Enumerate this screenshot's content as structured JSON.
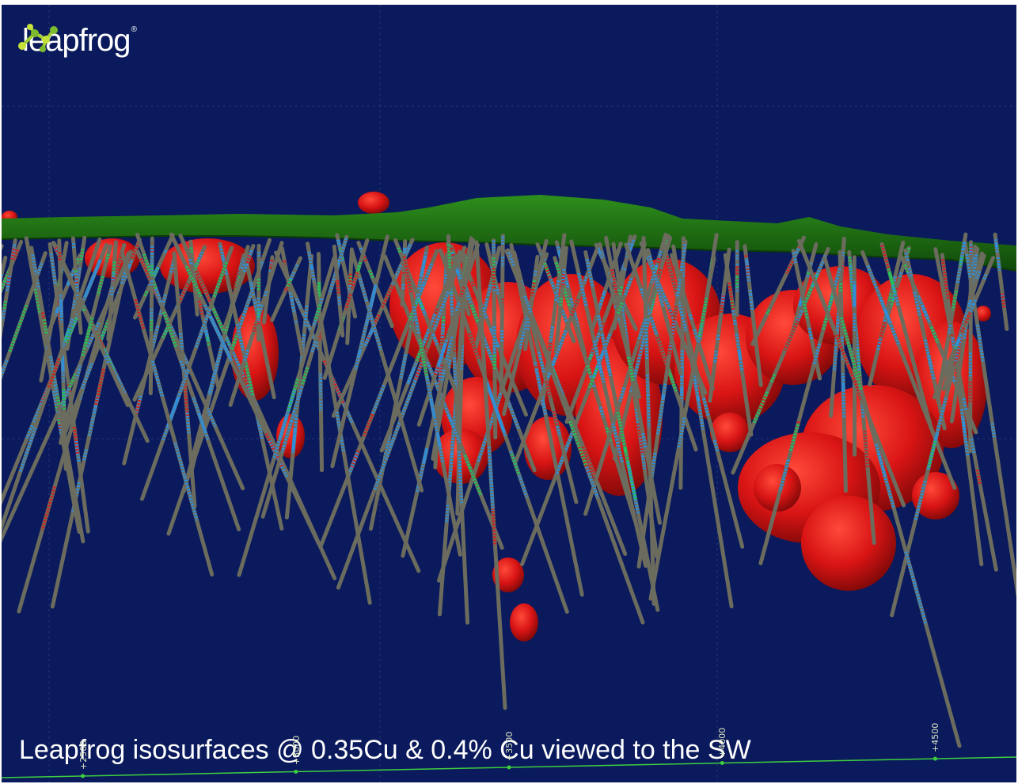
{
  "logo": {
    "text": "leapfrog",
    "registered": "®",
    "icon": "leapfrog-frog-icon",
    "mark_colors": [
      "#c6e23a",
      "#7cba2e"
    ]
  },
  "caption": "Leapfrog isosurfaces @ 0.35Cu & 0.4% Cu viewed to the SW",
  "axis": {
    "ticks": [
      {
        "label": "+2500",
        "pos": 0.08
      },
      {
        "label": "+3000",
        "pos": 0.29
      },
      {
        "label": "+3500",
        "pos": 0.5
      },
      {
        "label": "+4000",
        "pos": 0.71
      },
      {
        "label": "+4500",
        "pos": 0.92
      }
    ],
    "color": "#3fcf3f"
  },
  "colors": {
    "background": "#0a1a5c",
    "topography": "#1f7a12",
    "isosurface": "#d81414",
    "drillhole": "#6b6b5e",
    "assay_low": "#2f8fdc",
    "assay_mid": "#22c25a",
    "assay_high": "#d02020"
  }
}
